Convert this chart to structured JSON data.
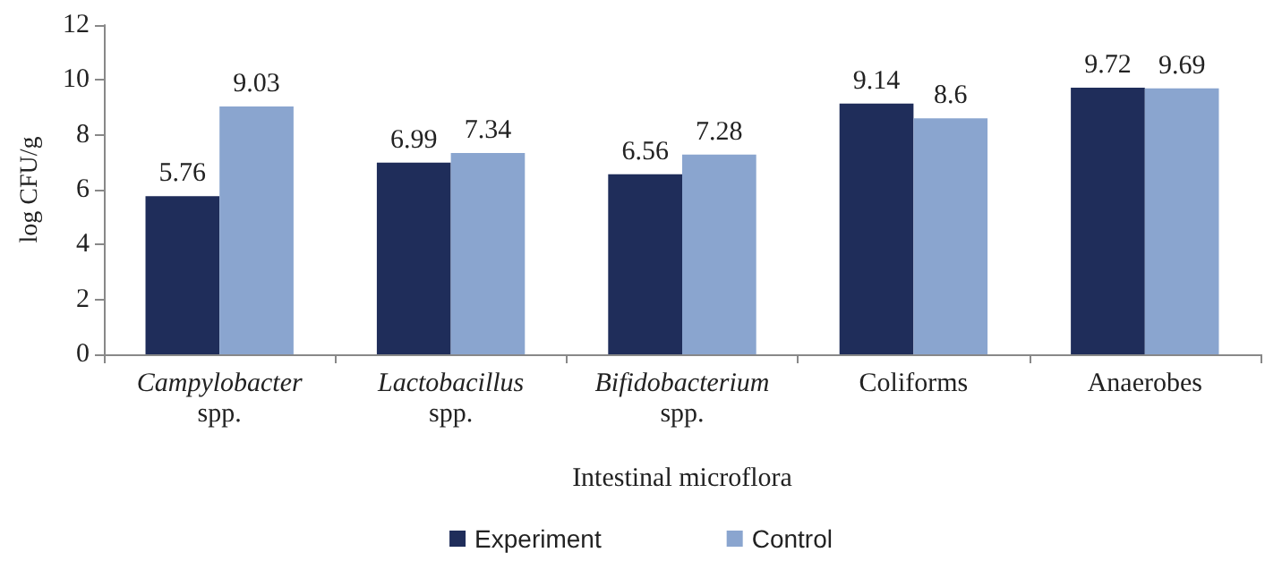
{
  "chart_data": {
    "type": "bar",
    "xlabel": "Intestinal microflora",
    "ylabel": "log CFU/g",
    "categories": [
      "Campylobacter spp.",
      "Lactobacillus spp.",
      "Bifidobacterium spp.",
      "Coliforms",
      "Anaerobes"
    ],
    "series": [
      {
        "name": "Experiment",
        "color": "#1f2d5a",
        "values": [
          5.76,
          6.99,
          6.56,
          9.14,
          9.72
        ]
      },
      {
        "name": "Control",
        "color": "#8aa5cf",
        "values": [
          9.03,
          7.34,
          7.28,
          8.6,
          9.69
        ]
      }
    ],
    "ylim": [
      0,
      12
    ],
    "yticks": [
      0,
      2,
      4,
      6,
      8,
      10,
      12
    ],
    "data_labels": true,
    "grid": false,
    "legend": "bottom"
  }
}
